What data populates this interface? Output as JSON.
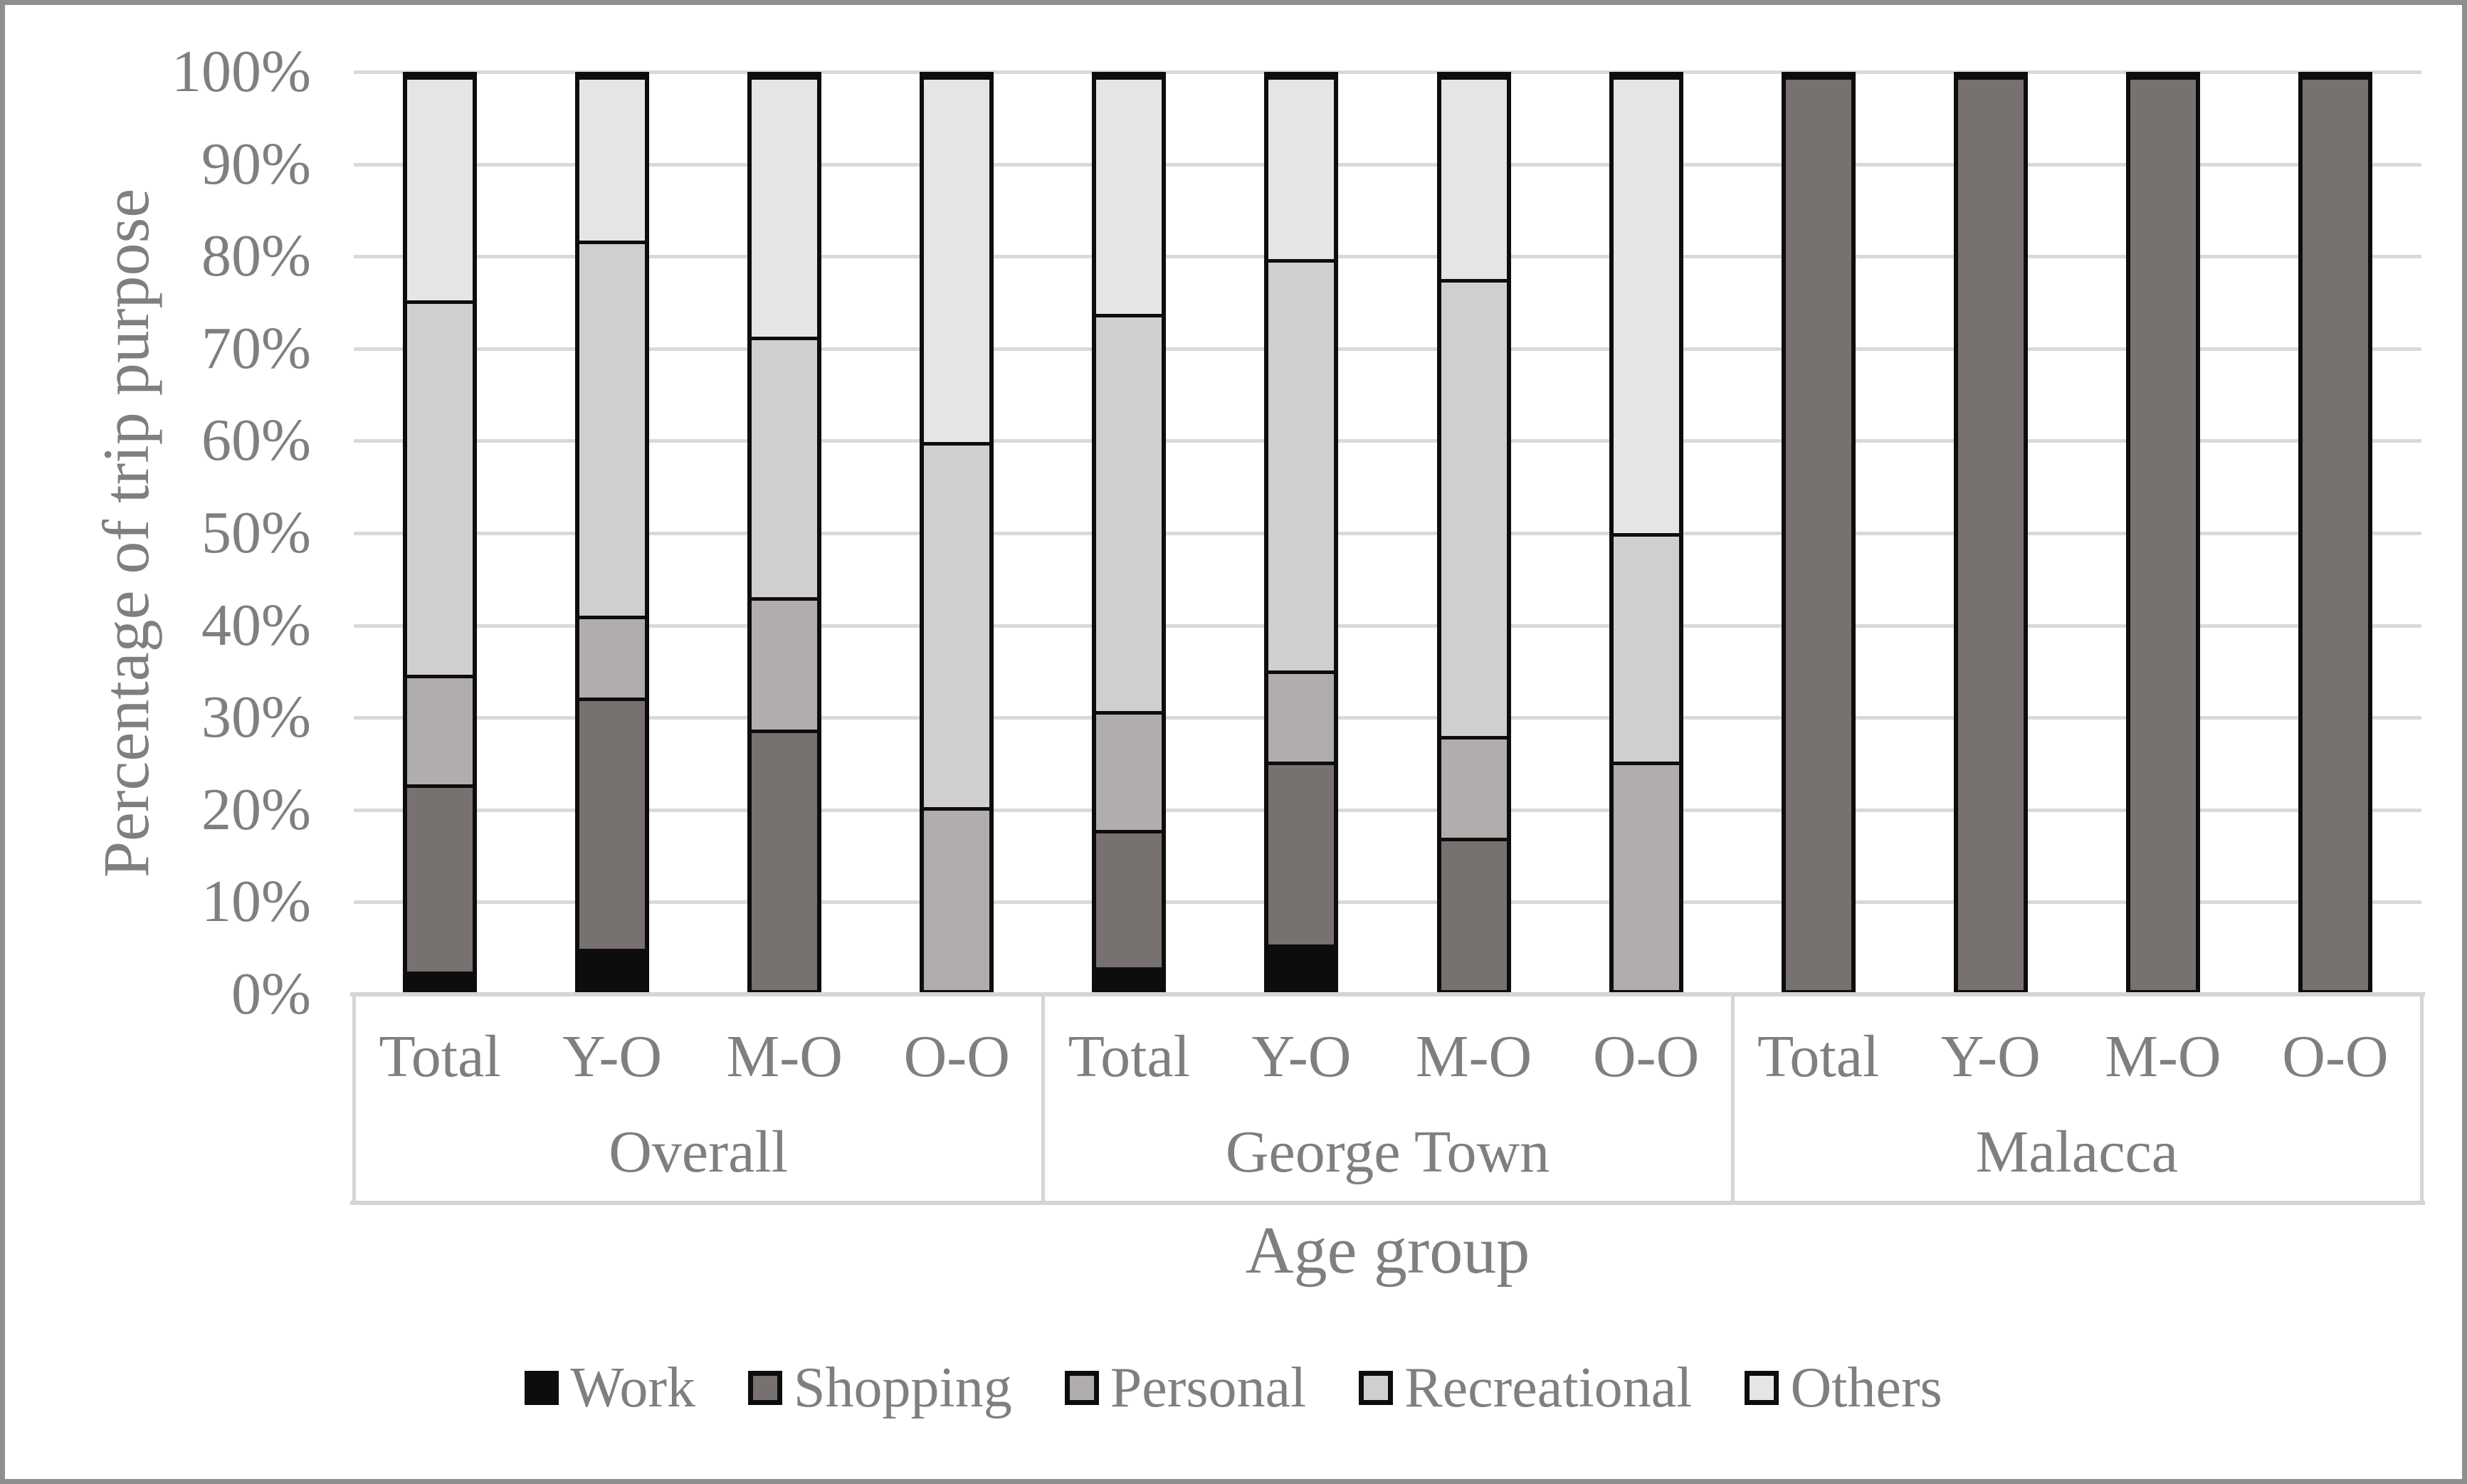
{
  "chart_data": {
    "type": "bar",
    "stacked": true,
    "percent": true,
    "title": "",
    "ylabel": "Percentage of trip purpose",
    "xlabel": "Age group",
    "ylim": [
      0,
      100
    ],
    "grid": true,
    "legend_position": "bottom",
    "y_ticks": [
      "0%",
      "10%",
      "20%",
      "30%",
      "40%",
      "50%",
      "60%",
      "70%",
      "80%",
      "90%",
      "100%"
    ],
    "group_labels": [
      "Overall",
      "George Town",
      "Malacca"
    ],
    "category_labels": [
      "Total",
      "Y-O",
      "M-O",
      "O-O",
      "Total",
      "Y-O",
      "M-O",
      "O-O",
      "Total",
      "Y-O",
      "M-O",
      "O-O"
    ],
    "series": [
      {
        "name": "Work",
        "color": "#0d0d0d",
        "values": [
          2,
          4.5,
          0,
          0,
          2.5,
          5,
          0,
          0,
          0,
          0,
          0,
          0
        ]
      },
      {
        "name": "Shopping",
        "color": "#777170",
        "values": [
          20.5,
          27.5,
          28.5,
          0,
          15,
          20,
          16.7,
          0,
          100,
          100,
          100,
          100
        ]
      },
      {
        "name": "Personal",
        "color": "#b0adac",
        "values": [
          12,
          9,
          14.5,
          20,
          13,
          10,
          11.1,
          25,
          0,
          0,
          0,
          0
        ]
      },
      {
        "name": "Recreational",
        "color": "#d1cfce",
        "values": [
          41,
          41,
          28.5,
          40,
          43.5,
          45,
          50,
          25,
          0,
          0,
          0,
          0
        ]
      },
      {
        "name": "Others",
        "color": "#e6e5e5",
        "values": [
          24.5,
          18,
          28.5,
          40,
          26,
          20,
          22.2,
          50,
          0,
          0,
          0,
          0
        ]
      }
    ]
  },
  "colors": {
    "grid": "#d9d9d9",
    "bar_border": "#0d0d0d",
    "text": "#7f7f7f",
    "frame": "#8f8f8f"
  }
}
